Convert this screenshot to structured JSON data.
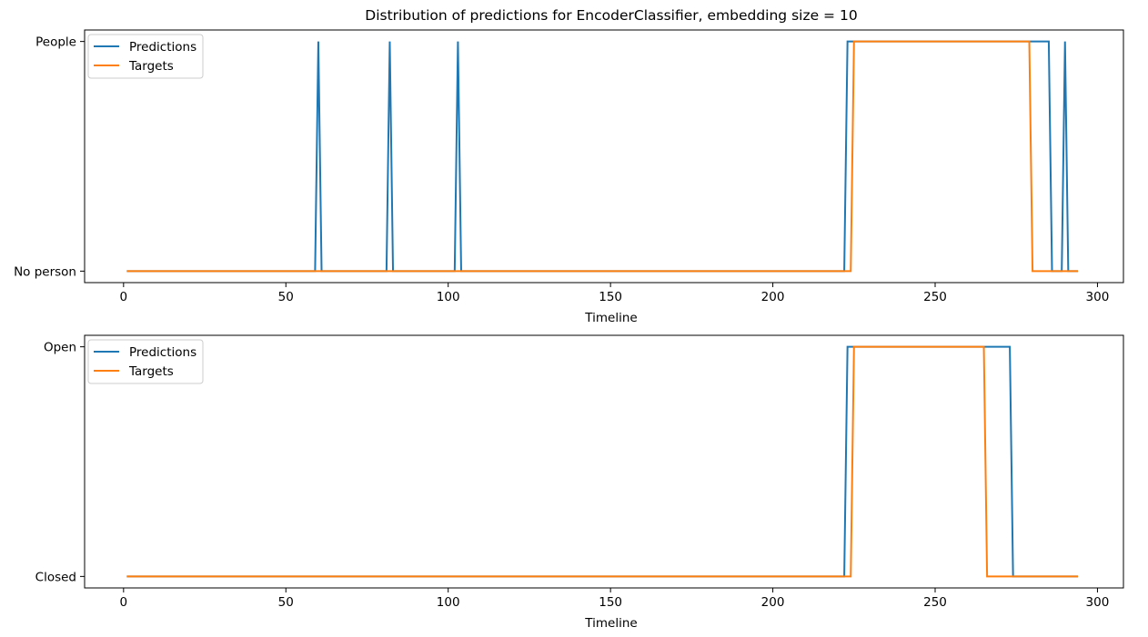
{
  "chart_data": [
    {
      "type": "line",
      "title": "Distribution of predictions for EncoderClassifier, embedding size = 10",
      "xlabel": "Timeline",
      "ylabel": "",
      "xlim": [
        -12,
        308
      ],
      "ylim": [
        -0.05,
        1.05
      ],
      "xticks": [
        0,
        50,
        100,
        150,
        200,
        250,
        300
      ],
      "yticks": [
        {
          "value": 0,
          "label": "No person"
        },
        {
          "value": 1,
          "label": "People"
        }
      ],
      "grid": false,
      "legend": "top-left",
      "series": [
        {
          "name": "Predictions",
          "color": "#1f77b4",
          "points": [
            [
              1,
              0
            ],
            [
              59,
              0
            ],
            [
              60,
              1
            ],
            [
              61,
              0
            ],
            [
              81,
              0
            ],
            [
              82,
              1
            ],
            [
              83,
              0
            ],
            [
              102,
              0
            ],
            [
              103,
              1
            ],
            [
              104,
              0
            ],
            [
              222,
              0
            ],
            [
              223,
              1
            ],
            [
              285,
              1
            ],
            [
              286,
              0
            ],
            [
              289,
              0
            ],
            [
              290,
              1
            ],
            [
              291,
              0
            ],
            [
              294,
              0
            ]
          ]
        },
        {
          "name": "Targets",
          "color": "#ff7f0e",
          "points": [
            [
              1,
              0
            ],
            [
              224,
              0
            ],
            [
              225,
              1
            ],
            [
              279,
              1
            ],
            [
              280,
              0
            ],
            [
              294,
              0
            ]
          ]
        }
      ]
    },
    {
      "type": "line",
      "title": "",
      "xlabel": "Timeline",
      "ylabel": "",
      "xlim": [
        -12,
        308
      ],
      "ylim": [
        -0.05,
        1.05
      ],
      "xticks": [
        0,
        50,
        100,
        150,
        200,
        250,
        300
      ],
      "yticks": [
        {
          "value": 0,
          "label": "Closed"
        },
        {
          "value": 1,
          "label": "Open"
        }
      ],
      "grid": false,
      "legend": "top-left",
      "series": [
        {
          "name": "Predictions",
          "color": "#1f77b4",
          "points": [
            [
              1,
              0
            ],
            [
              222,
              0
            ],
            [
              223,
              1
            ],
            [
              273,
              1
            ],
            [
              274,
              0
            ],
            [
              294,
              0
            ]
          ]
        },
        {
          "name": "Targets",
          "color": "#ff7f0e",
          "points": [
            [
              1,
              0
            ],
            [
              224,
              0
            ],
            [
              225,
              1
            ],
            [
              265,
              1
            ],
            [
              266,
              0
            ],
            [
              294,
              0
            ]
          ]
        }
      ]
    }
  ]
}
